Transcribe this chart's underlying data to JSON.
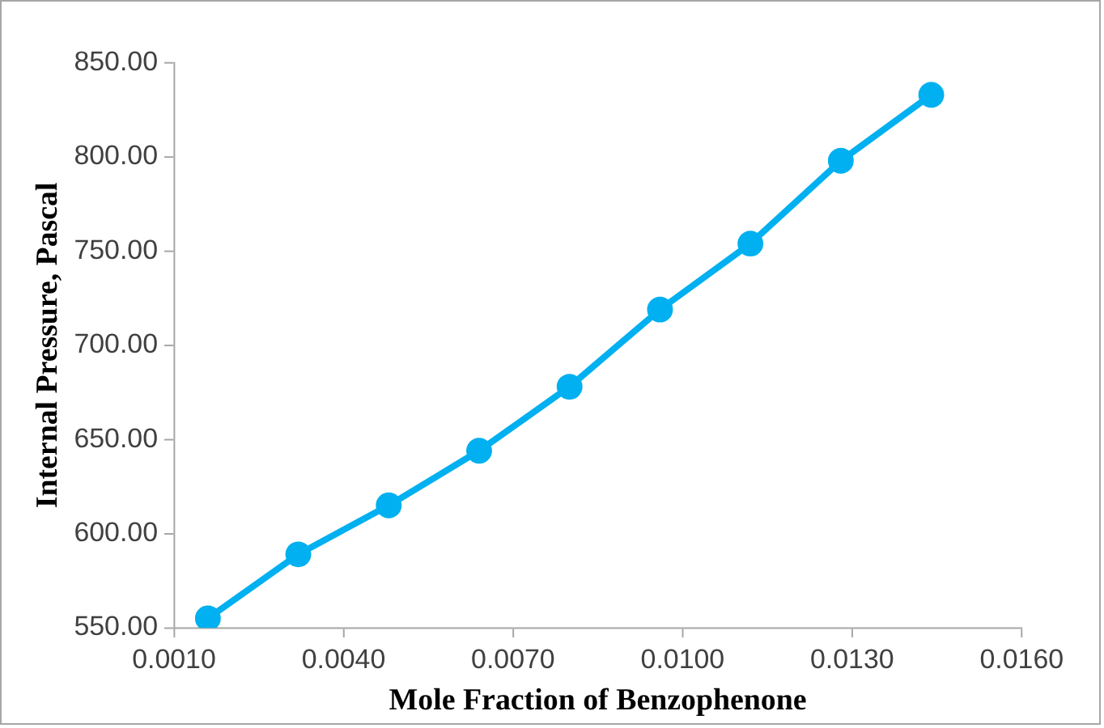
{
  "chart_data": {
    "type": "line",
    "xlabel": "Mole Fraction of Benzophenone",
    "ylabel": "Internal Pressure, Pascal",
    "x": [
      0.0016,
      0.0032,
      0.0048,
      0.0064,
      0.008,
      0.0096,
      0.0112,
      0.0128,
      0.0144
    ],
    "series": [
      {
        "color": "#00b0f0",
        "values": [
          555,
          589,
          615,
          644,
          678,
          719,
          754,
          798,
          833
        ]
      }
    ],
    "xlim": [
      0.001,
      0.016
    ],
    "xticks": [
      {
        "value": 0.001,
        "label": "0.0010"
      },
      {
        "value": 0.004,
        "label": "0.0040"
      },
      {
        "value": 0.007,
        "label": "0.0070"
      },
      {
        "value": 0.01,
        "label": "0.0100"
      },
      {
        "value": 0.013,
        "label": "0.0130"
      },
      {
        "value": 0.016,
        "label": "0.0160"
      }
    ],
    "ylim": [
      550,
      850
    ],
    "yticks": [
      {
        "value": 550,
        "label": "550.00"
      },
      {
        "value": 600,
        "label": "600.00"
      },
      {
        "value": 650,
        "label": "650.00"
      },
      {
        "value": 700,
        "label": "700.00"
      },
      {
        "value": 750,
        "label": "750.00"
      },
      {
        "value": 800,
        "label": "800.00"
      },
      {
        "value": 850,
        "label": "850.00"
      }
    ],
    "grid": false,
    "legend": false,
    "marker": "circle",
    "line_style": "solid"
  }
}
